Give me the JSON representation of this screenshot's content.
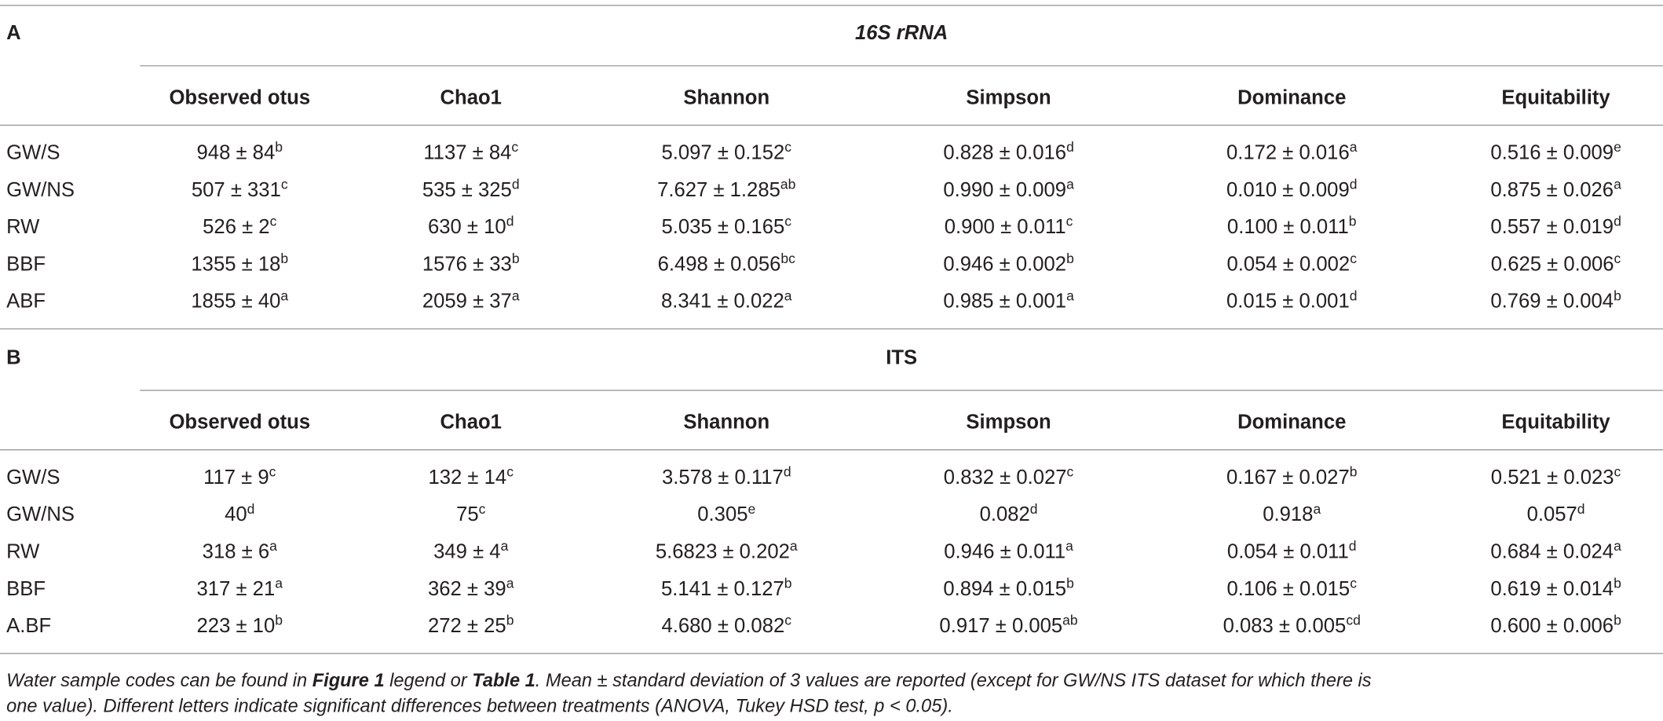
{
  "tables": [
    {
      "label": "A",
      "title": "16S rRNA",
      "columns": [
        "Observed otus",
        "Chao1",
        "Shannon",
        "Simpson",
        "Dominance",
        "Equitability"
      ],
      "rows": [
        {
          "name": "GW/S",
          "cells": [
            [
              "948 ± 84",
              "b"
            ],
            [
              "1137 ± 84",
              "c"
            ],
            [
              "5.097 ± 0.152",
              "c"
            ],
            [
              "0.828 ± 0.016",
              "d"
            ],
            [
              "0.172 ± 0.016",
              "a"
            ],
            [
              "0.516 ± 0.009",
              "e"
            ]
          ]
        },
        {
          "name": "GW/NS",
          "cells": [
            [
              "507 ± 331",
              "c"
            ],
            [
              "535 ± 325",
              "d"
            ],
            [
              "7.627 ± 1.285",
              "ab"
            ],
            [
              "0.990 ± 0.009",
              "a"
            ],
            [
              "0.010 ± 0.009",
              "d"
            ],
            [
              "0.875 ± 0.026",
              "a"
            ]
          ]
        },
        {
          "name": "RW",
          "cells": [
            [
              "526 ± 2",
              "c"
            ],
            [
              "630 ± 10",
              "d"
            ],
            [
              "5.035 ± 0.165",
              "c"
            ],
            [
              "0.900 ± 0.011",
              "c"
            ],
            [
              "0.100 ± 0.011",
              "b"
            ],
            [
              "0.557 ± 0.019",
              "d"
            ]
          ]
        },
        {
          "name": "BBF",
          "cells": [
            [
              "1355 ± 18",
              "b"
            ],
            [
              "1576 ± 33",
              "b"
            ],
            [
              "6.498 ± 0.056",
              "bc"
            ],
            [
              "0.946 ± 0.002",
              "b"
            ],
            [
              "0.054 ± 0.002",
              "c"
            ],
            [
              "0.625 ± 0.006",
              "c"
            ]
          ]
        },
        {
          "name": "ABF",
          "cells": [
            [
              "1855 ± 40",
              "a"
            ],
            [
              "2059 ± 37",
              "a"
            ],
            [
              "8.341 ± 0.022",
              "a"
            ],
            [
              "0.985 ± 0.001",
              "a"
            ],
            [
              "0.015 ± 0.001",
              "d"
            ],
            [
              "0.769 ± 0.004",
              "b"
            ]
          ]
        }
      ]
    },
    {
      "label": "B",
      "title": "ITS",
      "columns": [
        "Observed otus",
        "Chao1",
        "Shannon",
        "Simpson",
        "Dominance",
        "Equitability"
      ],
      "rows": [
        {
          "name": "GW/S",
          "cells": [
            [
              "117 ± 9",
              "c"
            ],
            [
              "132 ± 14",
              "c"
            ],
            [
              "3.578 ± 0.117",
              "d"
            ],
            [
              "0.832 ± 0.027",
              "c"
            ],
            [
              "0.167 ± 0.027",
              "b"
            ],
            [
              "0.521 ± 0.023",
              "c"
            ]
          ]
        },
        {
          "name": "GW/NS",
          "cells": [
            [
              "40",
              "d"
            ],
            [
              "75",
              "c"
            ],
            [
              "0.305",
              "e"
            ],
            [
              "0.082",
              "d"
            ],
            [
              "0.918",
              "a"
            ],
            [
              "0.057",
              "d"
            ]
          ]
        },
        {
          "name": "RW",
          "cells": [
            [
              "318 ± 6",
              "a"
            ],
            [
              "349 ± 4",
              "a"
            ],
            [
              "5.6823 ± 0.202",
              "a"
            ],
            [
              "0.946 ± 0.011",
              "a"
            ],
            [
              "0.054 ± 0.011",
              "d"
            ],
            [
              "0.684 ± 0.024",
              "a"
            ]
          ]
        },
        {
          "name": "BBF",
          "cells": [
            [
              "317 ± 21",
              "a"
            ],
            [
              "362 ± 39",
              "a"
            ],
            [
              "5.141 ± 0.127",
              "b"
            ],
            [
              "0.894 ± 0.015",
              "b"
            ],
            [
              "0.106 ± 0.015",
              "c"
            ],
            [
              "0.619 ± 0.014",
              "b"
            ]
          ]
        },
        {
          "name": "A.BF",
          "cells": [
            [
              "223 ± 10",
              "b"
            ],
            [
              "272 ± 25",
              "b"
            ],
            [
              "4.680 ± 0.082",
              "c"
            ],
            [
              "0.917 ± 0.005",
              "ab"
            ],
            [
              "0.083 ± 0.005",
              "cd"
            ],
            [
              "0.600 ± 0.006",
              "b"
            ]
          ]
        }
      ]
    }
  ],
  "footnote": [
    "Water sample codes can be found in ",
    "Figure 1",
    " legend or ",
    "Table 1",
    ". Mean ± standard deviation of 3 values are reported (except for GW/NS ITS dataset for which there is",
    "one value). Different letters indicate significant differences between treatments (ANOVA, Tukey HSD test, p < 0.05)."
  ]
}
